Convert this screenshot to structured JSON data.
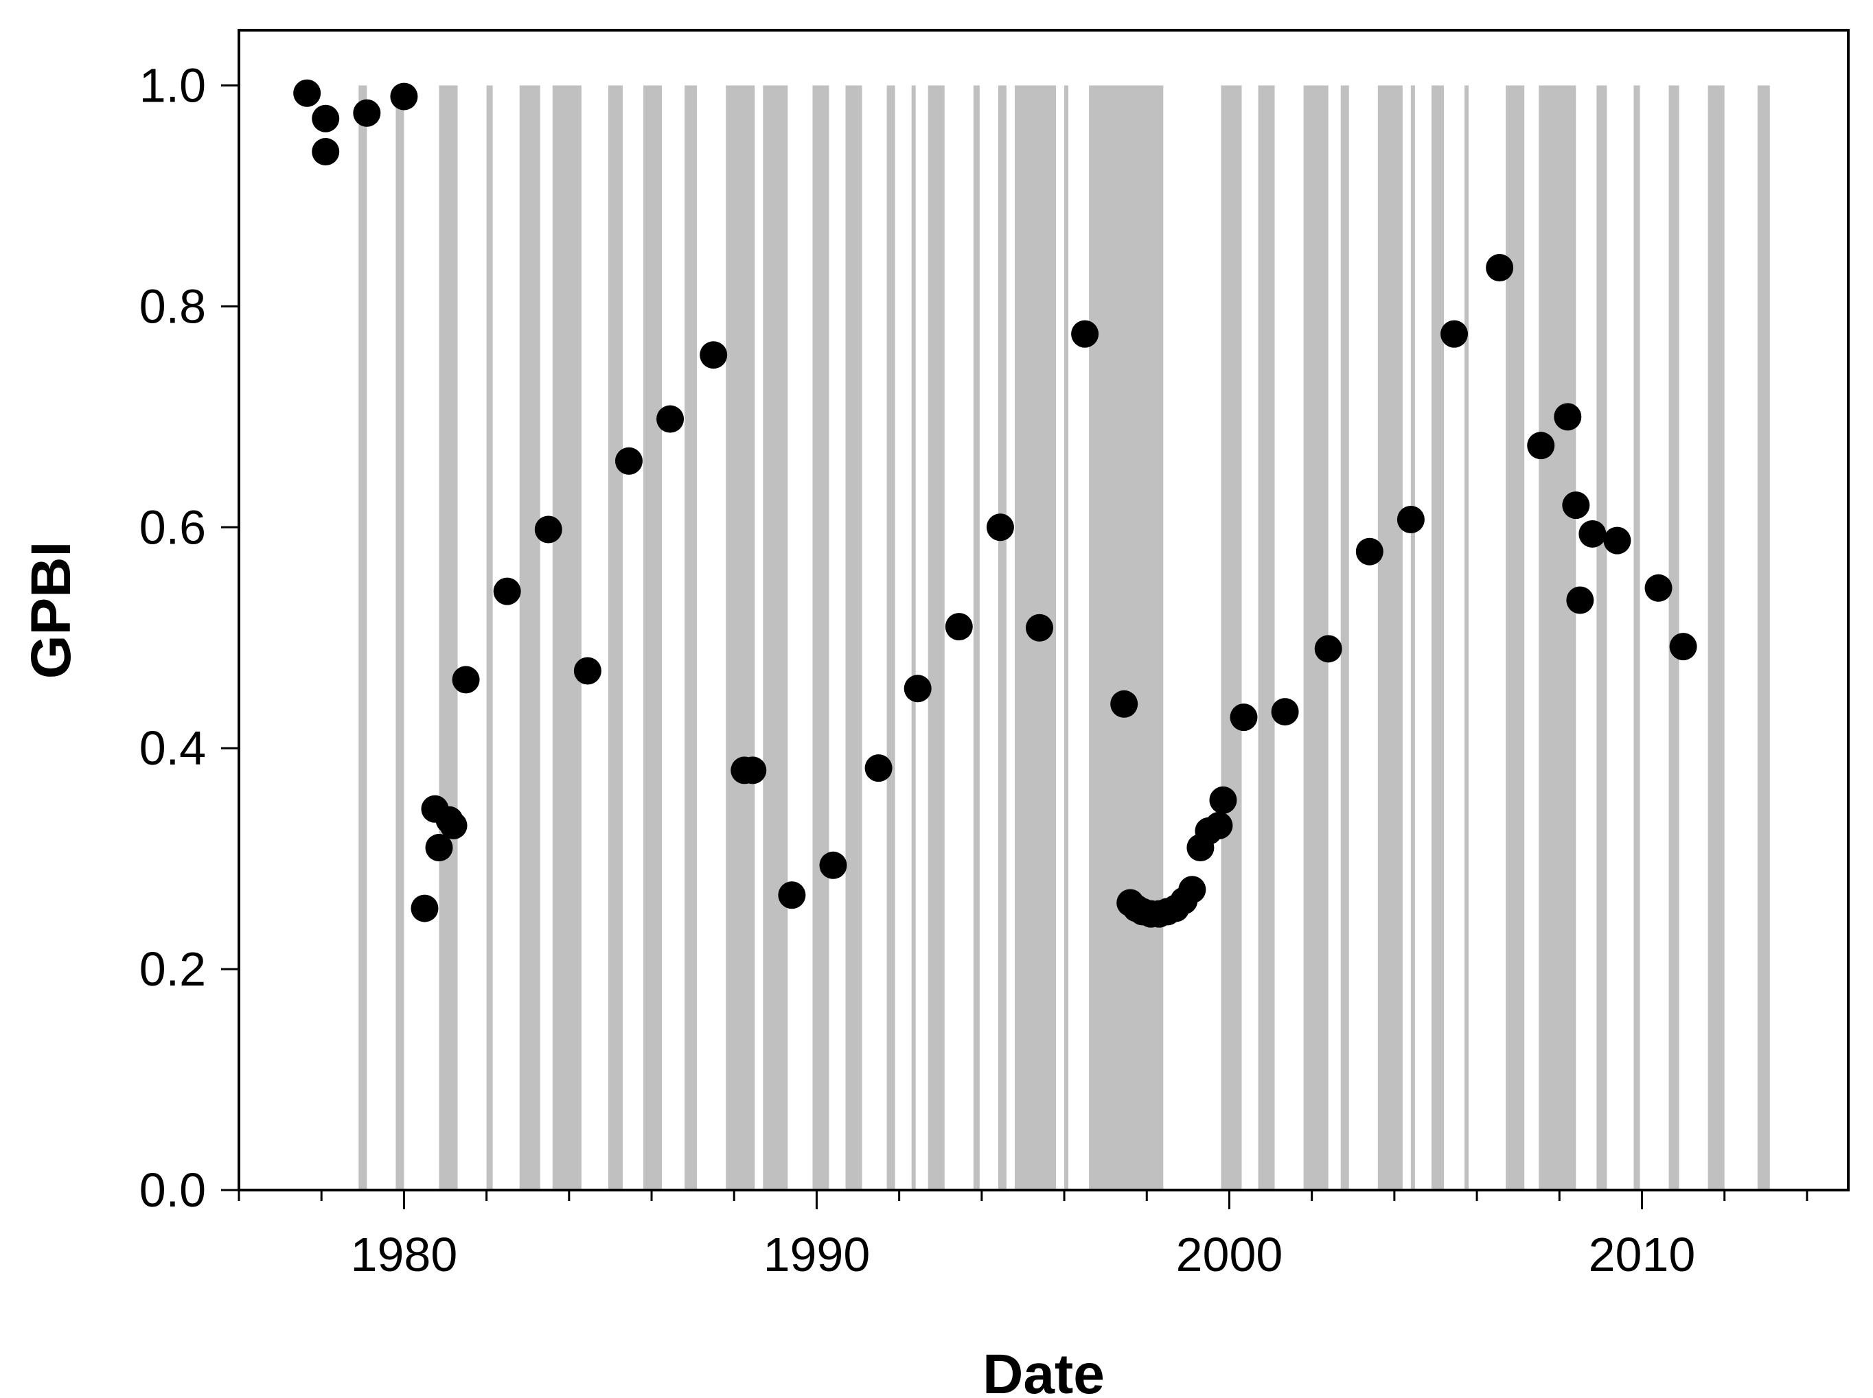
{
  "chart_data": {
    "type": "scatter",
    "title": "",
    "xlabel": "Date",
    "ylabel": "GPBI",
    "xlim": [
      1976.0,
      2015.0
    ],
    "ylim": [
      0.0,
      1.05
    ],
    "xticks_major": [
      1980,
      1990,
      2000,
      2010
    ],
    "xtick_labels": [
      "1980",
      "1990",
      "2000",
      "2010"
    ],
    "xticks_minor_step": 2,
    "yticks": [
      0.0,
      0.2,
      0.4,
      0.6,
      0.8,
      1.0
    ],
    "ytick_labels": [
      "0.0",
      "0.2",
      "0.4",
      "0.6",
      "0.8",
      "1.0"
    ],
    "grid": false,
    "legend": "none",
    "colors": {
      "points": "#000000",
      "bands": "#c0c0c0",
      "axis": "#000000"
    },
    "shaded_bands": {
      "top_value": 1.0,
      "intervals": [
        [
          1978.9,
          1979.1
        ],
        [
          1979.8,
          1980.0
        ],
        [
          1980.85,
          1981.3
        ],
        [
          1982.0,
          1982.15
        ],
        [
          1982.8,
          1983.3
        ],
        [
          1983.6,
          1984.3
        ],
        [
          1984.95,
          1985.3
        ],
        [
          1985.8,
          1986.25
        ],
        [
          1986.8,
          1987.1
        ],
        [
          1987.8,
          1988.5
        ],
        [
          1988.7,
          1989.3
        ],
        [
          1989.9,
          1990.3
        ],
        [
          1990.7,
          1991.1
        ],
        [
          1991.7,
          1991.9
        ],
        [
          1992.3,
          1992.4
        ],
        [
          1992.7,
          1993.1
        ],
        [
          1993.8,
          1993.95
        ],
        [
          1994.4,
          1994.6
        ],
        [
          1994.8,
          1995.8
        ],
        [
          1996.0,
          1996.1
        ],
        [
          1996.6,
          1998.4
        ],
        [
          1999.8,
          2000.3
        ],
        [
          2000.7,
          2001.1
        ],
        [
          2001.8,
          2002.4
        ],
        [
          2002.7,
          2002.9
        ],
        [
          2003.6,
          2004.2
        ],
        [
          2004.4,
          2004.5
        ],
        [
          2004.9,
          2005.2
        ],
        [
          2005.7,
          2005.8
        ],
        [
          2006.7,
          2007.15
        ],
        [
          2007.5,
          2008.4
        ],
        [
          2008.9,
          2009.15
        ],
        [
          2009.8,
          2009.95
        ],
        [
          2010.65,
          2010.9
        ],
        [
          2011.6,
          2012.0
        ],
        [
          2012.8,
          2013.1
        ]
      ]
    },
    "series": [
      {
        "points": [
          [
            1977.65,
            0.993
          ],
          [
            1978.1,
            0.97
          ],
          [
            1978.1,
            0.94
          ],
          [
            1979.1,
            0.975
          ],
          [
            1980.0,
            0.99
          ],
          [
            1980.5,
            0.255
          ],
          [
            1980.75,
            0.345
          ],
          [
            1980.85,
            0.31
          ],
          [
            1981.1,
            0.335
          ],
          [
            1981.2,
            0.33
          ],
          [
            1981.5,
            0.462
          ],
          [
            1982.5,
            0.542
          ],
          [
            1983.5,
            0.598
          ],
          [
            1984.45,
            0.47
          ],
          [
            1985.45,
            0.66
          ],
          [
            1986.45,
            0.698
          ],
          [
            1987.5,
            0.756
          ],
          [
            1988.25,
            0.38
          ],
          [
            1988.45,
            0.38
          ],
          [
            1989.4,
            0.267
          ],
          [
            1990.4,
            0.294
          ],
          [
            1991.5,
            0.382
          ],
          [
            1992.45,
            0.454
          ],
          [
            1993.45,
            0.51
          ],
          [
            1994.45,
            0.6
          ],
          [
            1995.4,
            0.509
          ],
          [
            1996.5,
            0.775
          ],
          [
            1997.45,
            0.44
          ],
          [
            1997.6,
            0.26
          ],
          [
            1997.75,
            0.255
          ],
          [
            1997.9,
            0.252
          ],
          [
            1998.1,
            0.25
          ],
          [
            1998.3,
            0.25
          ],
          [
            1998.5,
            0.252
          ],
          [
            1998.7,
            0.255
          ],
          [
            1998.9,
            0.262
          ],
          [
            1999.1,
            0.272
          ],
          [
            1999.3,
            0.31
          ],
          [
            1999.5,
            0.325
          ],
          [
            1999.75,
            0.33
          ],
          [
            1999.85,
            0.353
          ],
          [
            2000.35,
            0.428
          ],
          [
            2001.35,
            0.433
          ],
          [
            2002.4,
            0.49
          ],
          [
            2003.4,
            0.578
          ],
          [
            2004.4,
            0.607
          ],
          [
            2005.45,
            0.775
          ],
          [
            2006.55,
            0.835
          ],
          [
            2007.55,
            0.674
          ],
          [
            2008.2,
            0.7
          ],
          [
            2008.4,
            0.62
          ],
          [
            2008.5,
            0.534
          ],
          [
            2008.8,
            0.594
          ],
          [
            2009.4,
            0.588
          ],
          [
            2010.4,
            0.545
          ],
          [
            2011.0,
            0.492
          ]
        ]
      }
    ]
  }
}
